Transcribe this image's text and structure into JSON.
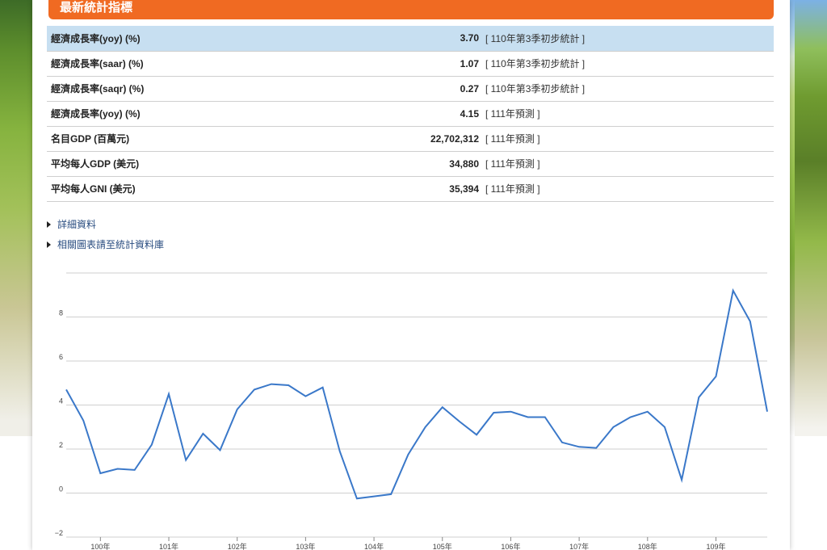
{
  "header": {
    "title": "最新統計指標"
  },
  "stats": [
    {
      "name": "經濟成長率(yoy) (%)",
      "value": "3.70",
      "note": "[ 110年第3季初步統計 ]"
    },
    {
      "name": "經濟成長率(saar) (%)",
      "value": "1.07",
      "note": "[ 110年第3季初步統計 ]"
    },
    {
      "name": "經濟成長率(saqr) (%)",
      "value": "0.27",
      "note": "[ 110年第3季初步統計 ]"
    },
    {
      "name": "經濟成長率(yoy) (%)",
      "value": "4.15",
      "note": "[ 111年預測 ]"
    },
    {
      "name": "名目GDP (百萬元)",
      "value": "22,702,312",
      "note": "[ 111年預測 ]"
    },
    {
      "name": "平均每人GDP (美元)",
      "value": "34,880",
      "note": "[ 111年預測 ]"
    },
    {
      "name": "平均每人GNI (美元)",
      "value": "35,394",
      "note": "[ 111年預測 ]"
    }
  ],
  "links": [
    {
      "label": "詳細資料"
    },
    {
      "label": "相關圖表請至統計資料庫"
    }
  ],
  "colors": {
    "accent": "#f06a22",
    "highlight": "#c7dff1",
    "line": "#3a78c9"
  },
  "chart_data": {
    "type": "line",
    "title": "",
    "xlabel": "",
    "ylabel": "",
    "ylim": [
      -2,
      10
    ],
    "yticks": [
      "-2",
      "0",
      "2",
      "4",
      "6",
      "8"
    ],
    "xticks": [
      "100年",
      "101年",
      "102年",
      "103年",
      "104年",
      "105年",
      "106年",
      "107年",
      "108年",
      "109年"
    ],
    "grid": true,
    "x": [
      99.5,
      99.75,
      100,
      100.25,
      100.5,
      100.75,
      101,
      101.25,
      101.5,
      101.75,
      102,
      102.25,
      102.5,
      102.75,
      103,
      103.25,
      103.5,
      103.75,
      104,
      104.25,
      104.5,
      104.75,
      105,
      105.25,
      105.5,
      105.75,
      106,
      106.25,
      106.5,
      106.75,
      107,
      107.25,
      107.5,
      107.75,
      108,
      108.25,
      108.5,
      108.75,
      109,
      109.25,
      109.5,
      109.75
    ],
    "series": [
      {
        "values": [
          4.7,
          3.3,
          0.9,
          1.1,
          1.05,
          2.2,
          4.5,
          1.5,
          2.7,
          1.95,
          3.8,
          4.7,
          4.95,
          4.9,
          4.4,
          4.8,
          1.9,
          -0.25,
          -0.15,
          -0.05,
          1.75,
          3.0,
          3.9,
          3.25,
          2.65,
          3.65,
          3.7,
          3.45,
          3.45,
          2.3,
          2.1,
          2.05,
          3.0,
          3.45,
          3.7,
          3.0,
          0.6,
          4.35,
          5.3,
          9.2,
          7.8,
          3.7
        ]
      }
    ]
  }
}
